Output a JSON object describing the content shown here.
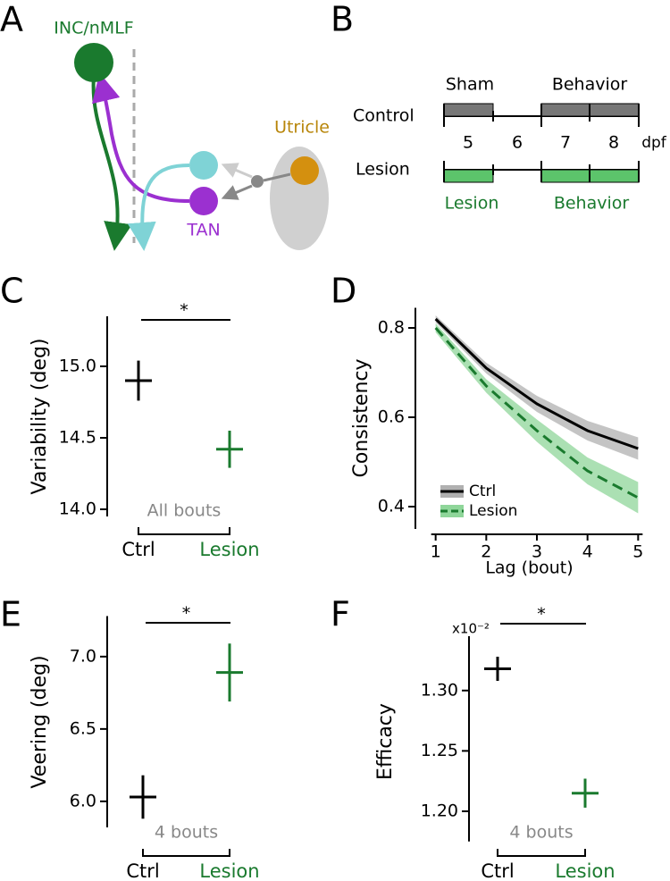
{
  "panel_labels": [
    "A",
    "B",
    "C",
    "D",
    "E",
    "F"
  ],
  "diagram": {
    "nodes": [
      "INC/nMLF",
      "TAN",
      "Utricle"
    ]
  },
  "timeline": {
    "rows": [
      "Control",
      "Lesion"
    ],
    "days": [
      "5",
      "6",
      "7",
      "8"
    ],
    "unit": "dpf",
    "control_labels": [
      "Sham",
      "Behavior"
    ],
    "lesion_labels": [
      "Lesion",
      "Behavior"
    ]
  },
  "chart_data": [
    {
      "type": "errorbar",
      "ylabel": "Variability (deg)",
      "categories": [
        "Ctrl",
        "Lesion"
      ],
      "colors": [
        "#000000",
        "#1a7a2e"
      ],
      "values": [
        14.9,
        14.42
      ],
      "errors": [
        0.14,
        0.13
      ],
      "ylim": [
        13.95,
        15.35
      ],
      "yticks": [
        {
          "value": 14,
          "label": "14.0"
        },
        14.5,
        {
          "value": 15,
          "label": "15.0"
        }
      ],
      "note": "All bouts",
      "significance": "*"
    },
    {
      "type": "line",
      "xlabel": "Lag (bout)",
      "ylabel": "Consistency",
      "x": [
        1,
        2,
        3,
        4,
        5
      ],
      "series": [
        {
          "name": "Ctrl",
          "color": "#000000",
          "band_color": "#b0b0b0",
          "dashed": false,
          "values": [
            0.82,
            0.71,
            0.63,
            0.57,
            0.53
          ],
          "errors": [
            0.008,
            0.012,
            0.018,
            0.022,
            0.025
          ]
        },
        {
          "name": "Lesion",
          "color": "#1a7a2e",
          "band_color": "#8fd69a",
          "dashed": true,
          "values": [
            0.8,
            0.67,
            0.57,
            0.48,
            0.42
          ],
          "errors": [
            0.01,
            0.015,
            0.025,
            0.03,
            0.035
          ]
        }
      ],
      "xlim": [
        0.6,
        5.1
      ],
      "xticks": [
        1,
        2,
        3,
        4,
        5
      ],
      "ylim": [
        0.35,
        0.845
      ],
      "yticks": [
        0.4,
        0.6,
        0.8
      ],
      "legend": "lower left"
    },
    {
      "type": "errorbar",
      "ylabel": "Veering (deg)",
      "categories": [
        "Ctrl",
        "Lesion"
      ],
      "colors": [
        "#000000",
        "#1a7a2e"
      ],
      "values": [
        6.03,
        6.89
      ],
      "errors": [
        0.15,
        0.2
      ],
      "ylim": [
        5.82,
        7.28
      ],
      "yticks": [
        {
          "value": 6,
          "label": "6.0"
        },
        6.5,
        {
          "value": 7,
          "label": "7.0"
        }
      ],
      "note": "4 bouts",
      "significance": "*"
    },
    {
      "type": "errorbar",
      "ylabel": "Efficacy",
      "scale_label": "x10⁻²",
      "categories": [
        "Ctrl",
        "Lesion"
      ],
      "colors": [
        "#000000",
        "#1a7a2e"
      ],
      "values": [
        1.318,
        1.215
      ],
      "errors": [
        0.01,
        0.012
      ],
      "ylim": [
        1.175,
        1.345
      ],
      "yticks": [
        {
          "value": 1.2,
          "label": "1.20"
        },
        1.25,
        {
          "value": 1.3,
          "label": "1.30"
        }
      ],
      "note": "4 bouts",
      "significance": "*"
    }
  ]
}
